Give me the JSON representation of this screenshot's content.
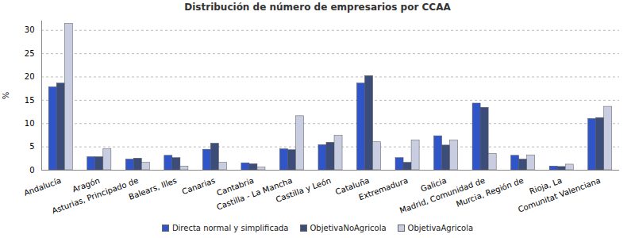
{
  "chart_data": {
    "type": "bar",
    "title": "Distribución de número de empresarios por CCAA",
    "y_label": "%",
    "categories": [
      "Andalucía",
      "Aragón",
      "Asturias, Principado de",
      "Balears, Illes",
      "Canarias",
      "Cantabria",
      "Castilla - La Mancha",
      "Castilla y León",
      "Cataluña",
      "Extremadura",
      "Galicia",
      "Madrid, Comunidad de",
      "Murcia, Región de",
      "Rioja, La",
      "Comunitat Valenciana"
    ],
    "series": [
      {
        "name": "Directa normal y simplificada",
        "color": "#2f55c8",
        "values": [
          17.8,
          2.8,
          2.3,
          3.1,
          4.4,
          1.5,
          4.5,
          5.4,
          18.6,
          2.6,
          7.3,
          14.3,
          3.1,
          0.8,
          11.0
        ]
      },
      {
        "name": "ObjetivaNoAgricola",
        "color": "#3c4d7a",
        "values": [
          18.6,
          2.8,
          2.5,
          2.6,
          5.7,
          1.3,
          4.3,
          5.9,
          20.2,
          1.6,
          5.3,
          13.4,
          2.3,
          0.7,
          11.2
        ]
      },
      {
        "name": "ObjetivaAgricola",
        "color": "#c9cde2",
        "values": [
          31.4,
          4.5,
          1.6,
          0.8,
          1.6,
          0.6,
          11.6,
          7.4,
          6.0,
          6.4,
          6.4,
          3.5,
          3.2,
          1.2,
          13.6
        ]
      }
    ],
    "ylim": [
      0,
      32
    ],
    "yticks": [
      0,
      5,
      10,
      15,
      20,
      25,
      30
    ],
    "grid": true,
    "legend": "bottom"
  }
}
